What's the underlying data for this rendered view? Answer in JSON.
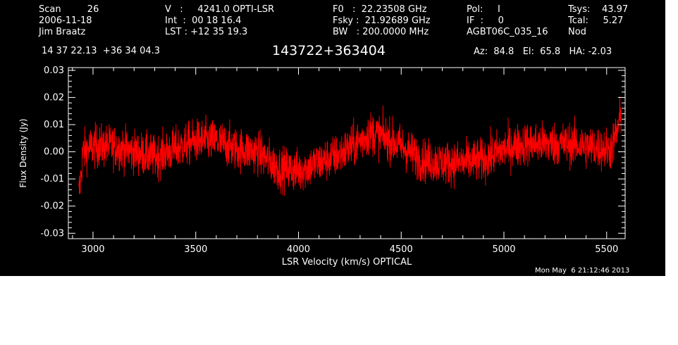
{
  "header": {
    "col1": [
      "Scan         26",
      "2006-11-18",
      "Jim Braatz"
    ],
    "col2": [
      "V   :     4241.0 OPTI-LSR",
      "Int  :  00 18 16.4",
      "LST : +12 35 19.3"
    ],
    "col3": [
      "F0   :  22.23508 GHz",
      "Fsky :  21.92689 GHz",
      "BW   : 200.0000 MHz"
    ],
    "col4": [
      "Pol:     I",
      "IF  :     0",
      "AGBT06C_035_16"
    ],
    "col5": [
      "Tsys:    43.97",
      "Tcal:     5.27",
      "Nod"
    ],
    "coords": "14 37 22.13  +36 34 04.3",
    "source": "143722+363404",
    "azelha": "Az:  84.8   El:  65.8   HA: -2.03"
  },
  "timestamp": "Mon May  6 21:12:46 2013",
  "colors": {
    "background": "#000000",
    "axes": "#ffffff",
    "series": "#ff0000"
  },
  "chart_data": {
    "type": "line",
    "title": "143722+363404",
    "xlabel": "LSR Velocity (km/s) OPTICAL",
    "ylabel": "Flux Density (Jy)",
    "xlim": [
      2880,
      5590
    ],
    "ylim": [
      -0.032,
      0.031
    ],
    "xticks": [
      3000,
      3500,
      4000,
      4500,
      5000,
      5500
    ],
    "xtick_labels": [
      "3000",
      "3500",
      "4000",
      "4500",
      "5000",
      "5500"
    ],
    "yticks": [
      -0.03,
      -0.02,
      -0.01,
      0.0,
      0.01,
      0.02,
      0.03
    ],
    "ytick_labels": [
      "-0.03",
      "-0.02",
      "-0.01",
      "0.00",
      "0.01",
      "0.02",
      "0.03"
    ],
    "grid": false,
    "series": [
      {
        "noise_rms": 0.004,
        "x": [
          2930,
          2940,
          2950,
          3000,
          3100,
          3200,
          3300,
          3400,
          3500,
          3600,
          3700,
          3800,
          3900,
          4000,
          4100,
          4200,
          4300,
          4350,
          4400,
          4500,
          4600,
          4700,
          4800,
          4900,
          5000,
          5100,
          5200,
          5300,
          5400,
          5500,
          5520,
          5550,
          5570
        ],
        "y": [
          -0.016,
          -0.01,
          0.0,
          0.002,
          0.002,
          0.0,
          -0.002,
          0.001,
          0.004,
          0.004,
          0.001,
          0.0,
          -0.006,
          -0.007,
          -0.004,
          -0.001,
          0.004,
          0.007,
          0.006,
          0.002,
          -0.003,
          -0.004,
          -0.004,
          -0.003,
          0.001,
          0.003,
          0.003,
          0.003,
          0.002,
          0.001,
          0.001,
          0.007,
          0.014
        ]
      }
    ]
  }
}
